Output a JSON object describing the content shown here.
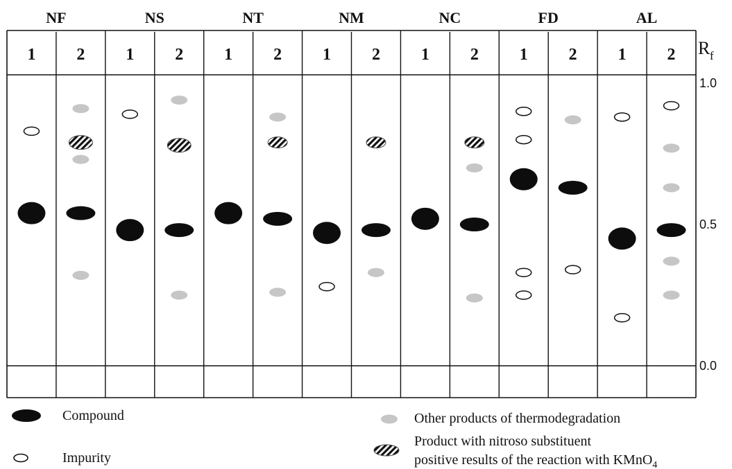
{
  "rf_axis": {
    "symbol": "R",
    "subscript": "f",
    "ticks": [
      {
        "label": "1.0",
        "value": 1.0
      },
      {
        "label": "0.5",
        "value": 0.5
      },
      {
        "label": "0.0",
        "value": 0.0
      }
    ]
  },
  "groups": [
    {
      "name": "NF",
      "lanes": [
        {
          "label": "1",
          "spots": [
            {
              "type": "impurity",
              "rf": 0.83
            },
            {
              "type": "compound",
              "rf": 0.54
            }
          ]
        },
        {
          "label": "2",
          "spots": [
            {
              "type": "other",
              "rf": 0.91
            },
            {
              "type": "nitroso",
              "rf": 0.79
            },
            {
              "type": "other",
              "rf": 0.73
            },
            {
              "type": "compound",
              "rf": 0.54
            },
            {
              "type": "other",
              "rf": 0.32
            }
          ]
        }
      ]
    },
    {
      "name": "NS",
      "lanes": [
        {
          "label": "1",
          "spots": [
            {
              "type": "impurity",
              "rf": 0.89
            },
            {
              "type": "compound",
              "rf": 0.48
            }
          ]
        },
        {
          "label": "2",
          "spots": [
            {
              "type": "other",
              "rf": 0.94
            },
            {
              "type": "nitroso",
              "rf": 0.78
            },
            {
              "type": "compound",
              "rf": 0.48
            },
            {
              "type": "other",
              "rf": 0.25
            }
          ]
        }
      ]
    },
    {
      "name": "NT",
      "lanes": [
        {
          "label": "1",
          "spots": [
            {
              "type": "compound",
              "rf": 0.54
            }
          ]
        },
        {
          "label": "2",
          "spots": [
            {
              "type": "other",
              "rf": 0.88
            },
            {
              "type": "nitroso",
              "rf": 0.79
            },
            {
              "type": "compound",
              "rf": 0.52
            },
            {
              "type": "other",
              "rf": 0.26
            }
          ]
        }
      ]
    },
    {
      "name": "NM",
      "lanes": [
        {
          "label": "1",
          "spots": [
            {
              "type": "compound",
              "rf": 0.47
            },
            {
              "type": "impurity",
              "rf": 0.28
            }
          ]
        },
        {
          "label": "2",
          "spots": [
            {
              "type": "nitroso",
              "rf": 0.79
            },
            {
              "type": "compound",
              "rf": 0.48
            },
            {
              "type": "other",
              "rf": 0.33
            }
          ]
        }
      ]
    },
    {
      "name": "NC",
      "lanes": [
        {
          "label": "1",
          "spots": [
            {
              "type": "compound",
              "rf": 0.52
            }
          ]
        },
        {
          "label": "2",
          "spots": [
            {
              "type": "nitroso",
              "rf": 0.79
            },
            {
              "type": "other",
              "rf": 0.7
            },
            {
              "type": "compound",
              "rf": 0.5
            },
            {
              "type": "other",
              "rf": 0.24
            }
          ]
        }
      ]
    },
    {
      "name": "FD",
      "lanes": [
        {
          "label": "1",
          "spots": [
            {
              "type": "impurity",
              "rf": 0.9
            },
            {
              "type": "impurity",
              "rf": 0.8
            },
            {
              "type": "compound",
              "rf": 0.66
            },
            {
              "type": "impurity",
              "rf": 0.33
            },
            {
              "type": "impurity",
              "rf": 0.25
            }
          ]
        },
        {
          "label": "2",
          "spots": [
            {
              "type": "other",
              "rf": 0.87
            },
            {
              "type": "compound",
              "rf": 0.63
            },
            {
              "type": "impurity",
              "rf": 0.34
            }
          ]
        }
      ]
    },
    {
      "name": "AL",
      "lanes": [
        {
          "label": "1",
          "spots": [
            {
              "type": "impurity",
              "rf": 0.88
            },
            {
              "type": "compound",
              "rf": 0.45
            },
            {
              "type": "impurity",
              "rf": 0.17
            }
          ]
        },
        {
          "label": "2",
          "spots": [
            {
              "type": "impurity",
              "rf": 0.92
            },
            {
              "type": "other",
              "rf": 0.77
            },
            {
              "type": "other",
              "rf": 0.63
            },
            {
              "type": "compound",
              "rf": 0.48
            },
            {
              "type": "other",
              "rf": 0.37
            },
            {
              "type": "other",
              "rf": 0.25
            }
          ]
        }
      ]
    }
  ],
  "legend": {
    "compound": "Compound",
    "impurity": "Impurity",
    "other": "Other products of thermodegradation",
    "nitroso_line1": "Product with  nitroso substituent",
    "nitroso_line2": "positive results of the reaction with KMnO",
    "nitroso_subscript": "4"
  },
  "colors": {
    "compound": "#0d0d0d",
    "impurity_fill": "#ffffff",
    "other": "#c6c6c6",
    "line": "#111111"
  }
}
